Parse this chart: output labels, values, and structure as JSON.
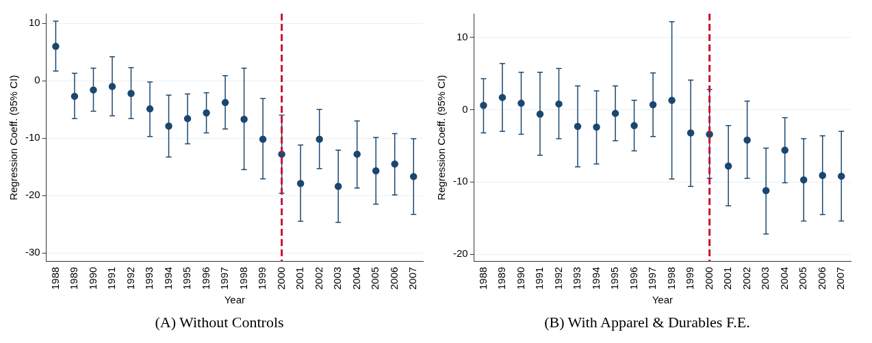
{
  "chart_data": [
    {
      "type": "scatter",
      "title": "(A) Without Controls",
      "xlabel": "Year",
      "ylabel": "Regression Coeff. (95% CI)",
      "categories": [
        "1988",
        "1989",
        "1990",
        "1991",
        "1992",
        "1993",
        "1994",
        "1995",
        "1996",
        "1997",
        "1998",
        "1999",
        "2000",
        "2001",
        "2002",
        "2003",
        "2004",
        "2005",
        "2006",
        "2007"
      ],
      "series": [
        {
          "color": "#1a476f",
          "values": [
            6.0,
            -2.7,
            -1.6,
            -1.0,
            -2.2,
            -4.9,
            -7.9,
            -6.6,
            -5.6,
            -3.8,
            -6.7,
            -10.2,
            -12.8,
            -17.9,
            -10.2,
            -18.4,
            -12.8,
            -15.7,
            -14.5,
            -16.7
          ],
          "errors": [
            [
              1.7,
              10.4
            ],
            [
              -6.6,
              1.3
            ],
            [
              -5.3,
              2.2
            ],
            [
              -6.1,
              4.2
            ],
            [
              -6.6,
              2.3
            ],
            [
              -9.7,
              -0.2
            ],
            [
              -13.3,
              -2.5
            ],
            [
              -11.0,
              -2.3
            ],
            [
              -9.1,
              -2.1
            ],
            [
              -8.4,
              0.9
            ],
            [
              -15.5,
              2.2
            ],
            [
              -17.1,
              -3.1
            ],
            [
              -19.6,
              -6.0
            ],
            [
              -24.5,
              -11.2
            ],
            [
              -15.3,
              -5.0
            ],
            [
              -24.7,
              -12.1
            ],
            [
              -18.7,
              -7.0
            ],
            [
              -21.5,
              -9.9
            ],
            [
              -19.9,
              -9.2
            ],
            [
              -23.3,
              -10.1
            ]
          ]
        }
      ],
      "ylim": [
        -31.5,
        11.7
      ],
      "yticks": [
        -30,
        -20,
        -10,
        0,
        10
      ],
      "grid": "y",
      "legend": false,
      "marker": "circle",
      "ref_lines": [
        {
          "axis": "x",
          "value": "2000",
          "color": "#c8102e",
          "line_style": "dashed"
        }
      ]
    },
    {
      "type": "scatter",
      "title": "(B) With Apparel & Durables F.E.",
      "xlabel": "Year",
      "ylabel": "Regression Coeff. (95% CI)",
      "categories": [
        "1988",
        "1989",
        "1990",
        "1991",
        "1992",
        "1993",
        "1994",
        "1995",
        "1996",
        "1997",
        "1998",
        "1999",
        "2000",
        "2001",
        "2002",
        "2003",
        "2004",
        "2005",
        "2006",
        "2007"
      ],
      "series": [
        {
          "color": "#1a476f",
          "values": [
            0.6,
            1.7,
            0.9,
            -0.6,
            0.8,
            -2.3,
            -2.4,
            -0.5,
            -2.2,
            0.7,
            1.3,
            -3.2,
            -3.4,
            -7.8,
            -4.2,
            -11.2,
            -5.6,
            -9.7,
            -9.1,
            -9.2
          ],
          "errors": [
            [
              -3.2,
              4.3
            ],
            [
              -3.0,
              6.4
            ],
            [
              -3.4,
              5.2
            ],
            [
              -6.3,
              5.2
            ],
            [
              -4.0,
              5.7
            ],
            [
              -7.9,
              3.3
            ],
            [
              -7.5,
              2.6
            ],
            [
              -4.3,
              3.3
            ],
            [
              -5.7,
              1.3
            ],
            [
              -3.7,
              5.1
            ],
            [
              -9.6,
              12.2
            ],
            [
              -10.6,
              4.1
            ],
            [
              -9.5,
              2.8
            ],
            [
              -13.3,
              -2.2
            ],
            [
              -9.5,
              1.2
            ],
            [
              -17.2,
              -5.3
            ],
            [
              -10.1,
              -1.1
            ],
            [
              -15.4,
              -4.0
            ],
            [
              -14.5,
              -3.6
            ],
            [
              -15.4,
              -3.0
            ]
          ]
        }
      ],
      "ylim": [
        -21,
        13.3
      ],
      "yticks": [
        -20,
        -10,
        0,
        10
      ],
      "grid": "y",
      "legend": false,
      "marker": "circle",
      "ref_lines": [
        {
          "axis": "x",
          "value": "2000",
          "color": "#c8102e",
          "line_style": "dashed"
        }
      ]
    }
  ]
}
